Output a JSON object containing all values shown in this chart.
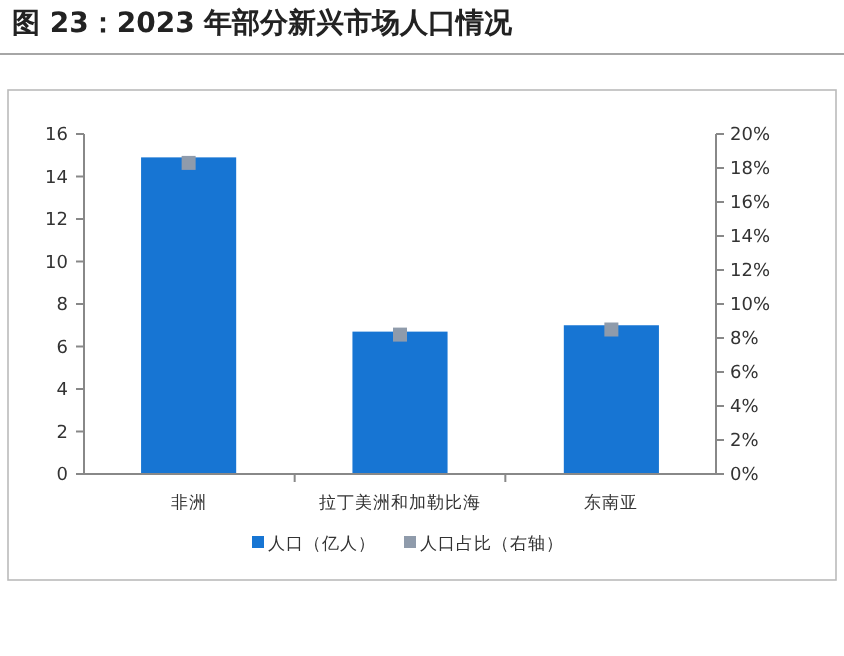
{
  "chart_data": {
    "type": "bar",
    "title": "图 23：2023 年部分新兴市场人口情况",
    "categories": [
      "非洲",
      "拉丁美洲和加勒比海",
      "东南亚"
    ],
    "series": [
      {
        "name": "人口（亿人）",
        "color": "#1775d3",
        "values": [
          14.9,
          6.7,
          7.0
        ]
      },
      {
        "name": "人口占比（右轴）",
        "type": "scatter",
        "axis": "y2",
        "color": "#8f9bab",
        "values": [
          18.3,
          8.2,
          8.5
        ]
      }
    ],
    "ylim": [
      0,
      16
    ],
    "yticks": [
      0,
      2,
      4,
      6,
      8,
      10,
      12,
      14,
      16
    ],
    "y2lim": [
      0,
      20
    ],
    "y2ticks": [
      {
        "value": 0,
        "label": "0%"
      },
      {
        "value": 2,
        "label": "2%"
      },
      {
        "value": 4,
        "label": "4%"
      },
      {
        "value": 6,
        "label": "6%"
      },
      {
        "value": 8,
        "label": "8%"
      },
      {
        "value": 10,
        "label": "10%"
      },
      {
        "value": 12,
        "label": "12%"
      },
      {
        "value": 14,
        "label": "14%"
      },
      {
        "value": 16,
        "label": "16%"
      },
      {
        "value": 18,
        "label": "18%"
      },
      {
        "value": 20,
        "label": "20%"
      }
    ],
    "marker": "square",
    "legend": "bottom",
    "grid": false
  }
}
